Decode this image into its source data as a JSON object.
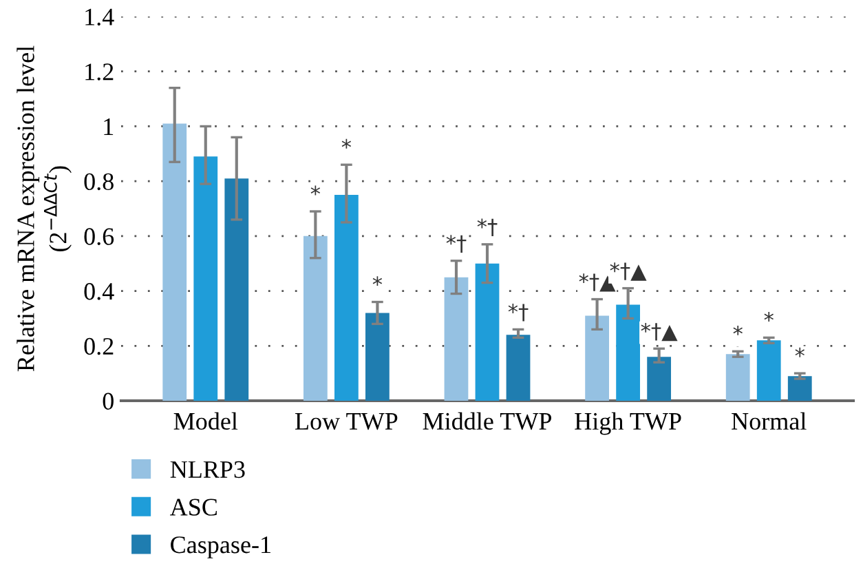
{
  "chart_data": {
    "type": "bar",
    "ylabel": "Relative mRNA expression level\n(2$^{−ΔΔCt}$)",
    "categories": [
      "Model",
      "Low TWP",
      "Middle TWP",
      "High TWP",
      "Normal"
    ],
    "series": [
      {
        "name": "NLRP3",
        "color": "#95c1e2",
        "values": [
          1.01,
          0.6,
          0.45,
          0.31,
          0.17
        ],
        "errors": [
          [
            0.87,
            1.14
          ],
          [
            0.52,
            0.69
          ],
          [
            0.39,
            0.51
          ],
          [
            0.26,
            0.37
          ],
          [
            0.16,
            0.18
          ]
        ],
        "value_labels": [
          null,
          "*",
          "*†",
          "*†▲",
          "*"
        ]
      },
      {
        "name": "ASC",
        "color": "#1f9dd9",
        "values": [
          0.89,
          0.75,
          0.5,
          0.35,
          0.22
        ],
        "errors": [
          [
            0.79,
            1.0
          ],
          [
            0.65,
            0.86
          ],
          [
            0.43,
            0.57
          ],
          [
            0.3,
            0.41
          ],
          [
            0.21,
            0.23
          ]
        ],
        "value_labels": [
          null,
          "*",
          "*†",
          "*†▲",
          "*"
        ]
      },
      {
        "name": "Caspase-1",
        "color": "#1f7db0",
        "values": [
          0.81,
          0.32,
          0.24,
          0.16,
          0.09
        ],
        "errors": [
          [
            0.66,
            0.96
          ],
          [
            0.28,
            0.36
          ],
          [
            0.23,
            0.26
          ],
          [
            0.14,
            0.19
          ],
          [
            0.08,
            0.1
          ]
        ],
        "value_labels": [
          null,
          "*",
          "*†",
          "*†▲",
          "*"
        ]
      }
    ],
    "ylim": [
      0,
      1.4
    ],
    "yticks": [
      0,
      0.2,
      0.4,
      0.6,
      0.8,
      1,
      1.2,
      1.4
    ],
    "grid": "y",
    "legend": "bottom left"
  }
}
